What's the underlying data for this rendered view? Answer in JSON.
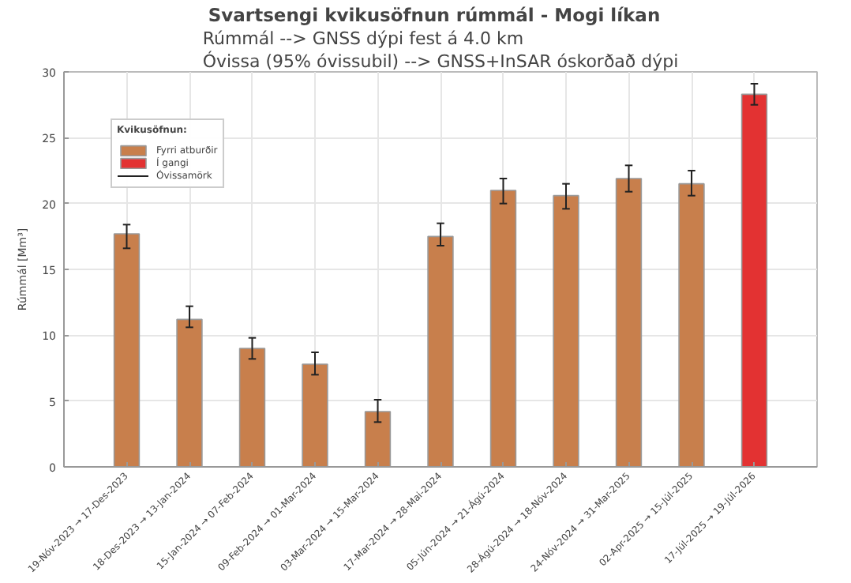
{
  "chart_data": {
    "type": "bar",
    "title": "Svartsengi kvikusöfnun rúmmál  -  Mogi líkan",
    "subtitle": "Rúmmál  --> GNSS dýpi fest á 4.0 km\nÓvissa (95% óvissubil) --> GNSS+InSAR óskorðað dýpi",
    "ylabel": "Rúmmál [Mm³]",
    "legend_title": "Kvikusöfnun:",
    "annotations": [
      "Óvissamörk"
    ],
    "categories": [
      "19-Nóv-2023 → 17-Des-2023",
      "18-Des-2023 → 13-Jan-2024",
      "15-Jan-2024 → 07-Feb-2024",
      "09-Feb-2024 → 01-Mar-2024",
      "03-Mar-2024 → 15-Mar-2024",
      "17-Mar-2024 → 28-Mai-2024",
      "05-Jún-2024 → 21-Ágú-2024",
      "28-Ágú-2024 → 18-Nóv-2024",
      "24-Nóv-2024 → 31-Mar-2025",
      "02-Apr-2025 → 15-Júl-2025",
      "17-Júl-2025 → 19-Júl-2026"
    ],
    "series": [
      {
        "name": "Fyrri atburðir",
        "color": "#c87f4c",
        "values": [
          17.7,
          11.2,
          9.0,
          7.8,
          4.2,
          17.5,
          21.0,
          20.6,
          21.9,
          21.5,
          null
        ],
        "errors": [
          [
            16.6,
            18.4
          ],
          [
            10.6,
            12.2
          ],
          [
            8.2,
            9.8
          ],
          [
            7.0,
            8.7
          ],
          [
            3.4,
            5.1
          ],
          [
            16.8,
            18.5
          ],
          [
            20.0,
            21.9
          ],
          [
            19.6,
            21.5
          ],
          [
            20.9,
            22.9
          ],
          [
            20.6,
            22.5
          ],
          null
        ]
      },
      {
        "name": "Í gangi",
        "color": "#e33232",
        "values": [
          null,
          null,
          null,
          null,
          null,
          null,
          null,
          null,
          null,
          null,
          28.3
        ],
        "errors": [
          null,
          null,
          null,
          null,
          null,
          null,
          null,
          null,
          null,
          null,
          [
            27.5,
            29.1
          ]
        ]
      }
    ],
    "ylim": [
      0,
      30
    ],
    "yticks": [
      0,
      5,
      10,
      15,
      20,
      25,
      30
    ],
    "grid": true,
    "legend": "top left"
  }
}
